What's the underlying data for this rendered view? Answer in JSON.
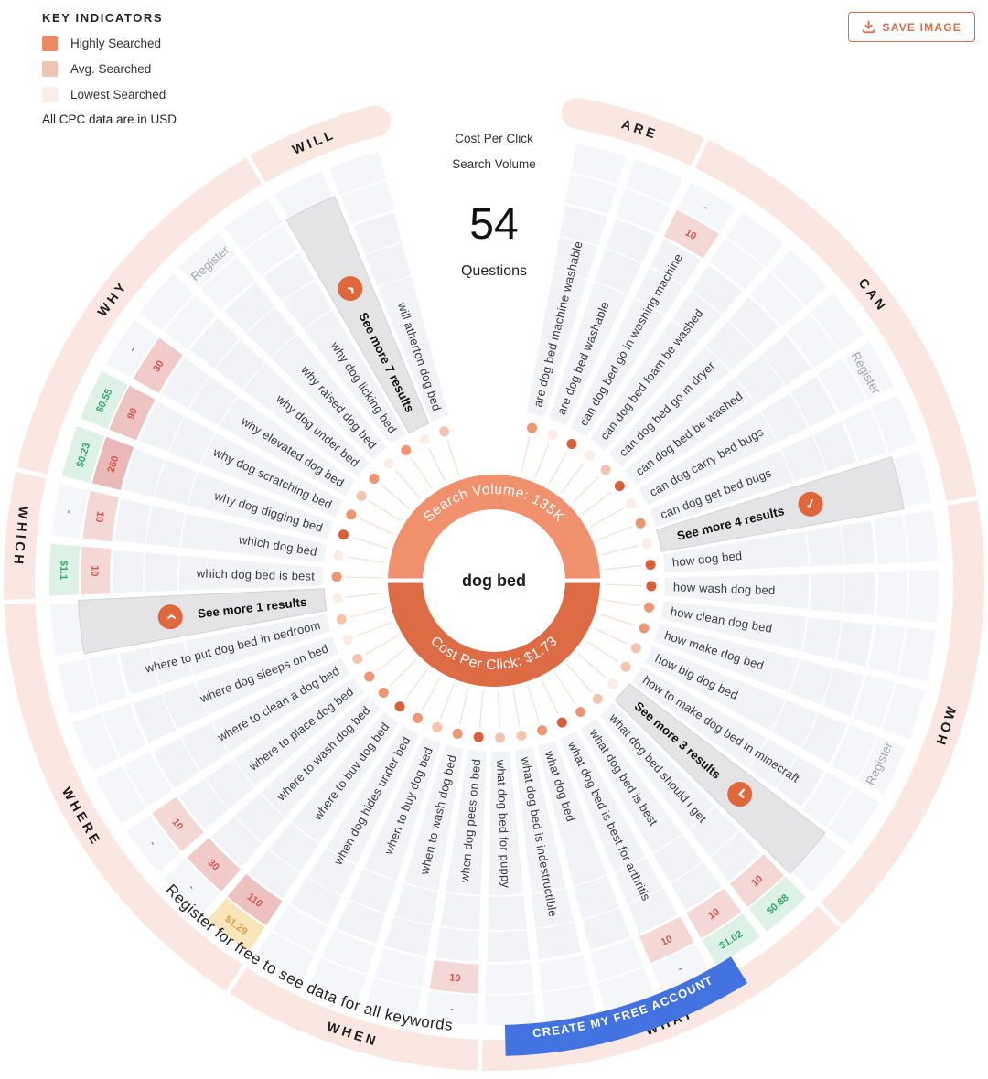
{
  "legend": {
    "title": "KEY INDICATORS",
    "items": [
      {
        "label": "Highly Searched",
        "color": "#EC8A63"
      },
      {
        "label": "Avg. Searched",
        "color": "#EFC4B5"
      },
      {
        "label": "Lowest Searched",
        "color": "#FCEDE8"
      }
    ],
    "note": "All CPC data are in USD"
  },
  "save_button": {
    "label": "SAVE IMAGE",
    "icon": "download-icon",
    "color": "#DD6B45"
  },
  "header": {
    "cpc_label": "Cost Per Click",
    "volume_label": "Search Volume",
    "count": "54",
    "count_label": "Questions"
  },
  "cta": {
    "register_text": "Register for free to see data for all keywords",
    "button_label": "CREATE MY FREE ACCOUNT",
    "button_color": "#4373E1"
  },
  "chart_data": {
    "type": "radial-keyword-wheel",
    "keyword": "dog bed",
    "center_volume_text": "Search Volume: 135K",
    "center_cpc_text": "Cost Per Click: $1.73",
    "total_questions": "54",
    "register_ghost_label": "Register",
    "register_sections": {
      "CAN": 4,
      "HOW": 4,
      "WHY": 4
    },
    "colors": {
      "donut_top": "#F0906C",
      "donut_bottom": "#DD6B44",
      "rim": "#FAE7E1",
      "cell": "#F2F3F6",
      "banner": "#E4E4E6",
      "banner_edge": "#D2D2D4",
      "ghost": "#F5F6F9",
      "icon_circle": "#E0663C",
      "vol_text": "#D4574E",
      "cpc_green": "#35A56D",
      "cpc_green_bg": "#DEF1E7",
      "cpc_yellow": "#E39B40",
      "cpc_yellow_bg": "#F8E6BA",
      "dash": "#555555",
      "register_gray": "#A2A6AD",
      "question_text": "#3A3A3C",
      "spoke_line": "#F6DFD5",
      "dots": [
        "#FCECE4",
        "#F6C4AE",
        "#EE9672",
        "#D85F37"
      ]
    },
    "categories": [
      {
        "name": "ARE",
        "items": [
          {
            "type": "question",
            "label": "are dog bed machine washable",
            "dot": 2
          },
          {
            "type": "question",
            "label": "are dog bed washable",
            "dot": 0
          }
        ]
      },
      {
        "name": "CAN",
        "items": [
          {
            "type": "question",
            "label": "can dog bed go in washing machine",
            "dot": 3,
            "vol": "10",
            "vol_bg": "#F4D8D6",
            "cpc": "-"
          },
          {
            "type": "question",
            "label": "can dog bed foam be washed",
            "dot": 0
          },
          {
            "type": "question",
            "label": "can dog bed go in dryer",
            "dot": 1
          },
          {
            "type": "question",
            "label": "can dog bed be washed",
            "dot": 3
          },
          {
            "type": "question",
            "label": "can dog carry bed bugs",
            "dot": 0
          },
          {
            "type": "question",
            "label": "can dog get bed bugs",
            "dot": 2
          },
          {
            "type": "see-more",
            "label": "See more 4 results",
            "icon": "check-icon",
            "dot": 0
          }
        ]
      },
      {
        "name": "HOW",
        "items": [
          {
            "type": "question",
            "label": "how dog bed",
            "dot": 3
          },
          {
            "type": "question",
            "label": "how wash dog bed",
            "dot": 3
          },
          {
            "type": "question",
            "label": "how clean dog bed",
            "dot": 2
          },
          {
            "type": "question",
            "label": "how make dog bed",
            "dot": 2
          },
          {
            "type": "question",
            "label": "how big dog bed",
            "dot": 1
          },
          {
            "type": "question",
            "label": "how to make dog bed in minecraft",
            "dot": 1
          },
          {
            "type": "see-more",
            "label": "See more 3 results",
            "icon": "clock-icon",
            "dot": 0
          }
        ]
      },
      {
        "name": "WHAT",
        "items": [
          {
            "type": "question",
            "label": "what dog bed should i get",
            "dot": 1,
            "vol": "10",
            "vol_bg": "#F4D8D6",
            "cpc": "$0.88",
            "cpc_style": "green"
          },
          {
            "type": "question",
            "label": "what dog bed is best",
            "dot": 2,
            "vol": "10",
            "vol_bg": "#F4D8D6",
            "cpc": "$1.02",
            "cpc_style": "green"
          },
          {
            "type": "question",
            "label": "what dog bed is best for arthritis",
            "dot": 3,
            "vol": "10",
            "vol_bg": "#F4D8D6",
            "cpc": "-"
          },
          {
            "type": "question",
            "label": "what dog bed",
            "dot": 2
          },
          {
            "type": "question",
            "label": "what dog bed is indestructible",
            "dot": 1
          },
          {
            "type": "question",
            "label": "what dog bed for puppy",
            "dot": 1
          }
        ]
      },
      {
        "name": "WHEN",
        "items": [
          {
            "type": "question",
            "label": "when dog pees on bed",
            "dot": 3,
            "vol": "10",
            "vol_bg": "#F4D8D6",
            "cpc": "-"
          },
          {
            "type": "question",
            "label": "when to wash dog bed",
            "dot": 2
          },
          {
            "type": "question",
            "label": "when to buy dog bed",
            "dot": 1
          },
          {
            "type": "question",
            "label": "when dog hides under bed",
            "dot": 2
          }
        ]
      },
      {
        "name": "WHERE",
        "items": [
          {
            "type": "question",
            "label": "where to buy dog bed",
            "dot": 3,
            "vol": "110",
            "vol_bg": "#EDC1BF",
            "cpc": "$1.29",
            "cpc_style": "yellow"
          },
          {
            "type": "question",
            "label": "where to wash dog bed",
            "dot": 2,
            "vol": "30",
            "vol_bg": "#F0CBC9",
            "cpc": "-"
          },
          {
            "type": "question",
            "label": "where to place dog bed",
            "dot": 2,
            "vol": "10",
            "vol_bg": "#F4D8D6",
            "cpc": "-"
          },
          {
            "type": "question",
            "label": "where to clean a dog bed",
            "dot": 1
          },
          {
            "type": "question",
            "label": "where dog sleeps on bed",
            "dot": 0
          },
          {
            "type": "question",
            "label": "where to put dog bed in bedroom",
            "dot": 1
          },
          {
            "type": "see-more",
            "label": "See more 1 results",
            "icon": "chevron-up-icon",
            "dot": 0
          }
        ]
      },
      {
        "name": "WHICH",
        "items": [
          {
            "type": "question",
            "label": "which dog bed is best",
            "dot": 2,
            "vol": "10",
            "vol_bg": "#F4D8D6",
            "cpc": "$1.1",
            "cpc_style": "green"
          },
          {
            "type": "question",
            "label": "which dog bed",
            "dot": 0,
            "vol": "10",
            "vol_bg": "#F4D8D6",
            "cpc": "-"
          }
        ]
      },
      {
        "name": "WHY",
        "items": [
          {
            "type": "question",
            "label": "why dog digging bed",
            "dot": 3,
            "vol": "260",
            "vol_bg": "#EAB8B6",
            "cpc": "$0.23",
            "cpc_style": "green"
          },
          {
            "type": "question",
            "label": "why dog scratching bed",
            "dot": 2,
            "vol": "90",
            "vol_bg": "#EEC4C2",
            "cpc": "$0.55",
            "cpc_style": "green"
          },
          {
            "type": "question",
            "label": "why elevated dog bed",
            "dot": 1,
            "vol": "30",
            "vol_bg": "#F0CBC9",
            "cpc": "-"
          },
          {
            "type": "question",
            "label": "why dog under bed",
            "dot": 2
          },
          {
            "type": "question",
            "label": "why raised dog bed",
            "dot": 0
          },
          {
            "type": "question",
            "label": "why dog licking bed",
            "dot": 2
          }
        ]
      },
      {
        "name": "WILL",
        "items": [
          {
            "type": "see-more",
            "label": "See more 7 results",
            "icon": "arrow-up-right-icon",
            "dot": 0
          },
          {
            "type": "question",
            "label": "will atherton dog bed",
            "dot": 1
          }
        ]
      }
    ]
  }
}
